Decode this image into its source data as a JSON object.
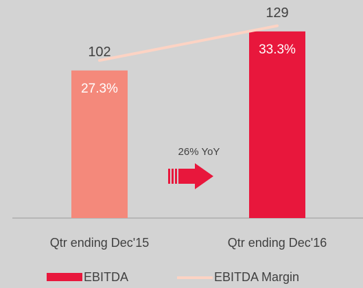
{
  "chart_data": {
    "type": "bar",
    "categories": [
      "Qtr ending Dec'15",
      "Qtr ending Dec'16"
    ],
    "series": [
      {
        "name": "EBITDA",
        "color": "#e8173c",
        "colors": [
          "#f4897b",
          "#e8173c"
        ],
        "values": [
          102,
          129
        ]
      },
      {
        "name": "EBITDA Margin",
        "type": "line",
        "color": "#fcd3c4",
        "values": [
          27.3,
          33.3
        ],
        "value_labels": [
          "27.3%",
          "33.3%"
        ]
      }
    ],
    "annotations": [
      "26% YoY"
    ],
    "legend": "bottom"
  }
}
